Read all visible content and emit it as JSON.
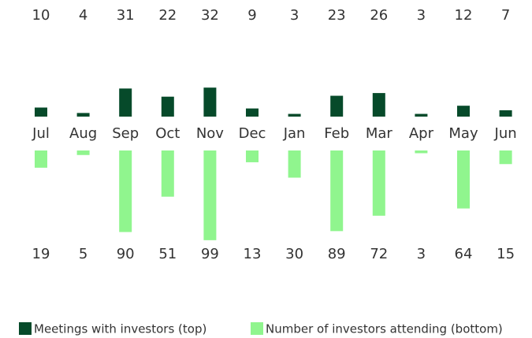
{
  "chart_data": {
    "type": "diverging_bar",
    "categories": [
      "Jul",
      "Aug",
      "Sep",
      "Oct",
      "Nov",
      "Dec",
      "Jan",
      "Feb",
      "Mar",
      "Apr",
      "May",
      "Jun"
    ],
    "series": [
      {
        "name": "Meetings with investors (top)",
        "color": "#064a2a",
        "values": [
          10,
          4,
          31,
          22,
          32,
          9,
          3,
          23,
          26,
          3,
          12,
          7
        ]
      },
      {
        "name": "Number of investors attending (bottom)",
        "color": "#90f58e",
        "values": [
          19,
          5,
          90,
          51,
          99,
          13,
          30,
          89,
          72,
          3,
          64,
          15
        ]
      }
    ],
    "legend": "bottom"
  }
}
